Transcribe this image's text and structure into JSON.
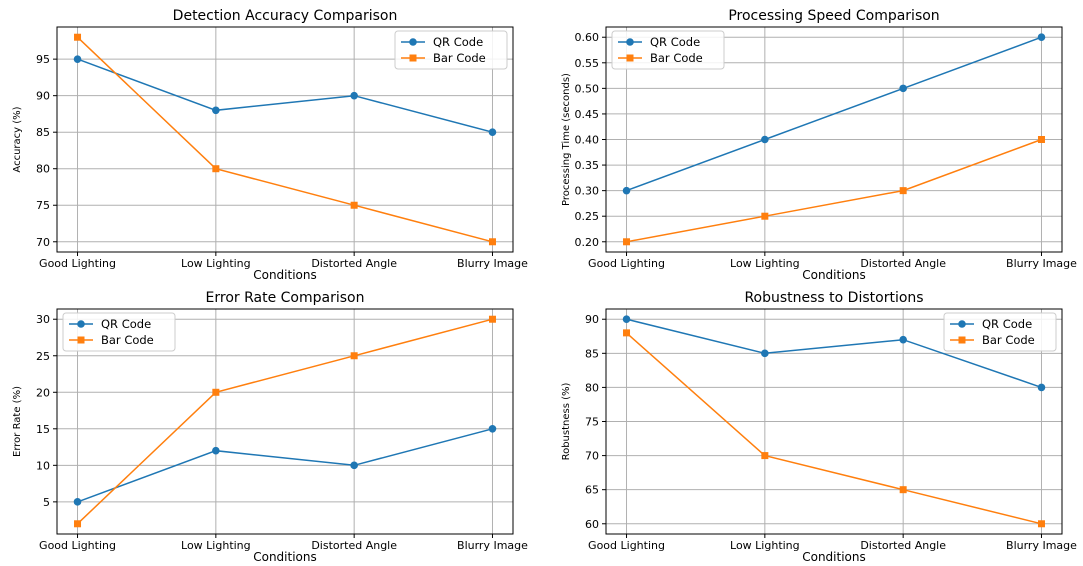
{
  "chart_data": [
    {
      "type": "line",
      "title": "Detection Accuracy Comparison",
      "xlabel": "Conditions",
      "ylabel": "Accuracy (%)",
      "categories": [
        "Good Lighting",
        "Low Lighting",
        "Distorted Angle",
        "Blurry Image"
      ],
      "yticks": [
        70,
        75,
        80,
        85,
        90,
        95
      ],
      "ylim": [
        68.6,
        99.4
      ],
      "legend": "top-right",
      "grid": true,
      "series": [
        {
          "name": "QR Code",
          "values": [
            95,
            88,
            90,
            85
          ],
          "color": "#1f77b4",
          "marker": "circle"
        },
        {
          "name": "Bar Code",
          "values": [
            98,
            80,
            75,
            70
          ],
          "color": "#ff7f0e",
          "marker": "square"
        }
      ]
    },
    {
      "type": "line",
      "title": "Processing Speed Comparison",
      "xlabel": "Conditions",
      "ylabel": "Processing Time (seconds)",
      "categories": [
        "Good Lighting",
        "Low Lighting",
        "Distorted Angle",
        "Blurry Image"
      ],
      "yticks": [
        0.2,
        0.25,
        0.3,
        0.35,
        0.4,
        0.45,
        0.5,
        0.55,
        0.6
      ],
      "ytick_decimals": 2,
      "ylim": [
        0.18,
        0.62
      ],
      "legend": "top-left",
      "grid": true,
      "series": [
        {
          "name": "QR Code",
          "values": [
            0.3,
            0.4,
            0.5,
            0.6
          ],
          "color": "#1f77b4",
          "marker": "circle"
        },
        {
          "name": "Bar Code",
          "values": [
            0.2,
            0.25,
            0.3,
            0.4
          ],
          "color": "#ff7f0e",
          "marker": "square"
        }
      ]
    },
    {
      "type": "line",
      "title": "Error Rate Comparison",
      "xlabel": "Conditions",
      "ylabel": "Error Rate (%)",
      "categories": [
        "Good Lighting",
        "Low Lighting",
        "Distorted Angle",
        "Blurry Image"
      ],
      "yticks": [
        5,
        10,
        15,
        20,
        25,
        30
      ],
      "ylim": [
        0.6,
        31.4
      ],
      "legend": "top-left",
      "grid": true,
      "series": [
        {
          "name": "QR Code",
          "values": [
            5,
            12,
            10,
            15
          ],
          "color": "#1f77b4",
          "marker": "circle"
        },
        {
          "name": "Bar Code",
          "values": [
            2,
            20,
            25,
            30
          ],
          "color": "#ff7f0e",
          "marker": "square"
        }
      ]
    },
    {
      "type": "line",
      "title": "Robustness to Distortions",
      "xlabel": "Conditions",
      "ylabel": "Robustness (%)",
      "categories": [
        "Good Lighting",
        "Low Lighting",
        "Distorted Angle",
        "Blurry Image"
      ],
      "yticks": [
        60,
        65,
        70,
        75,
        80,
        85,
        90
      ],
      "ylim": [
        58.5,
        91.5
      ],
      "legend": "top-right",
      "grid": true,
      "series": [
        {
          "name": "QR Code",
          "values": [
            90,
            85,
            87,
            80
          ],
          "color": "#1f77b4",
          "marker": "circle"
        },
        {
          "name": "Bar Code",
          "values": [
            88,
            70,
            65,
            60
          ],
          "color": "#ff7f0e",
          "marker": "square"
        }
      ]
    }
  ]
}
